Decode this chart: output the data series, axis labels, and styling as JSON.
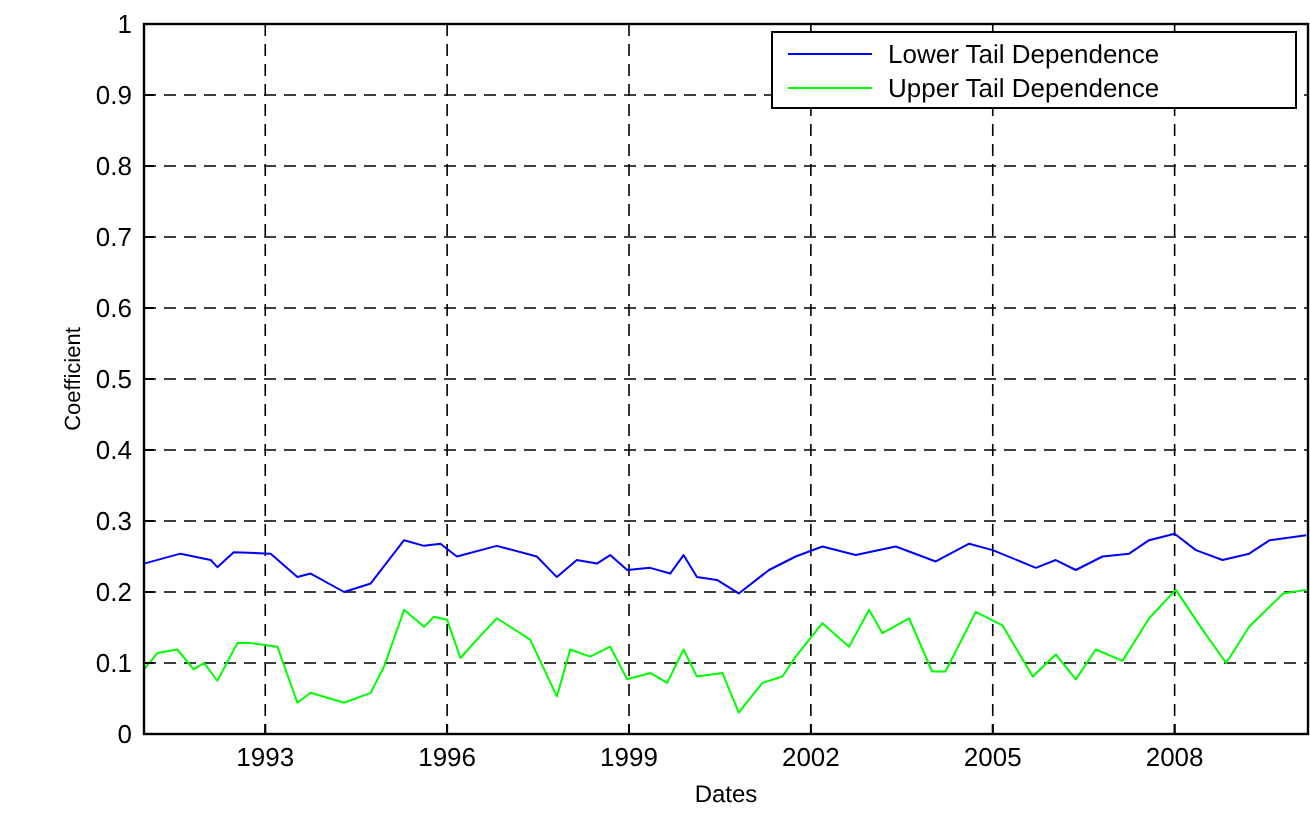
{
  "chart_data": {
    "type": "line",
    "xlabel": "Dates",
    "ylabel": "Coefficient",
    "xlim": [
      1991,
      2010.2
    ],
    "ylim": [
      0,
      1
    ],
    "xticks": [
      1993,
      1996,
      1999,
      2002,
      2005,
      2008
    ],
    "yticks": [
      0,
      0.1,
      0.2,
      0.3,
      0.4,
      0.5,
      0.6,
      0.7,
      0.8,
      0.9,
      1
    ],
    "grid": true,
    "legend": "top right",
    "line_style": "solid",
    "marker": "none",
    "series": [
      {
        "name": "Lower Tail Dependence",
        "color": "#0000ff",
        "x": [
          1991.0,
          1991.6,
          1992.1,
          1992.21,
          1992.48,
          1993.09,
          1993.53,
          1993.75,
          1994.3,
          1994.74,
          1995.29,
          1995.62,
          1995.89,
          1996.16,
          1996.82,
          1997.48,
          1997.81,
          1998.14,
          1998.47,
          1998.69,
          1998.97,
          1999.35,
          1999.68,
          1999.9,
          2000.12,
          2000.45,
          2000.81,
          2001.31,
          2001.75,
          2002.19,
          2002.74,
          2003.4,
          2004.06,
          2004.61,
          2005.0,
          2005.71,
          2006.04,
          2006.37,
          2006.81,
          2007.25,
          2007.58,
          2008.0,
          2008.35,
          2008.79,
          2009.23,
          2009.57,
          2010.17
        ],
        "values": [
          0.24,
          0.254,
          0.245,
          0.235,
          0.256,
          0.254,
          0.221,
          0.226,
          0.2,
          0.212,
          0.273,
          0.265,
          0.268,
          0.25,
          0.265,
          0.25,
          0.221,
          0.245,
          0.24,
          0.252,
          0.231,
          0.234,
          0.226,
          0.252,
          0.221,
          0.217,
          0.198,
          0.231,
          0.25,
          0.264,
          0.252,
          0.264,
          0.243,
          0.268,
          0.259,
          0.234,
          0.245,
          0.231,
          0.25,
          0.254,
          0.273,
          0.282,
          0.259,
          0.245,
          0.254,
          0.273,
          0.28
        ]
      },
      {
        "name": "Upper Tail Dependence",
        "color": "#00ff00",
        "x": [
          1991.0,
          1991.22,
          1991.55,
          1991.82,
          1991.99,
          1992.21,
          1992.54,
          1992.76,
          1993.2,
          1993.53,
          1993.75,
          1994.3,
          1994.74,
          1994.96,
          1995.29,
          1995.62,
          1995.78,
          1996.0,
          1996.22,
          1996.49,
          1996.82,
          1997.37,
          1997.81,
          1998.03,
          1998.36,
          1998.69,
          1998.97,
          1999.35,
          1999.63,
          1999.9,
          2000.12,
          2000.54,
          2000.81,
          2001.2,
          2001.53,
          2001.75,
          2002.19,
          2002.63,
          2002.96,
          2003.18,
          2003.62,
          2004.0,
          2004.22,
          2004.72,
          2005.16,
          2005.66,
          2006.04,
          2006.37,
          2006.7,
          2007.14,
          2007.58,
          2008.02,
          2008.46,
          2008.85,
          2009.23,
          2009.79,
          2010.17
        ],
        "values": [
          0.091,
          0.114,
          0.119,
          0.091,
          0.1,
          0.075,
          0.128,
          0.128,
          0.123,
          0.044,
          0.058,
          0.044,
          0.058,
          0.095,
          0.175,
          0.151,
          0.165,
          0.161,
          0.107,
          0.133,
          0.163,
          0.133,
          0.053,
          0.119,
          0.109,
          0.123,
          0.077,
          0.086,
          0.072,
          0.119,
          0.081,
          0.086,
          0.03,
          0.072,
          0.081,
          0.109,
          0.156,
          0.123,
          0.175,
          0.142,
          0.163,
          0.088,
          0.088,
          0.172,
          0.153,
          0.081,
          0.112,
          0.077,
          0.119,
          0.103,
          0.163,
          0.203,
          0.147,
          0.1,
          0.151,
          0.198,
          0.203
        ]
      }
    ]
  }
}
